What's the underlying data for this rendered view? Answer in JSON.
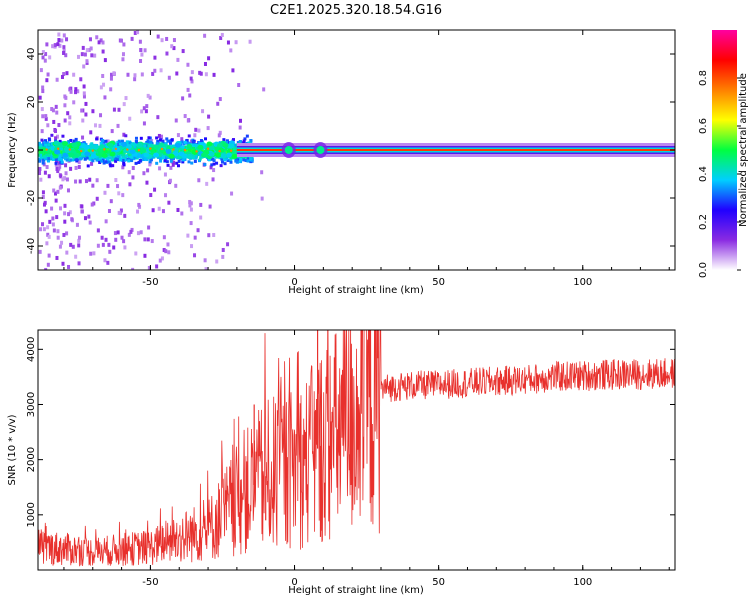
{
  "chart_data": [
    {
      "type": "heatmap",
      "title": "C2E1.2025.320.18.54.G16",
      "xlabel": "Height of straight line (km)",
      "ylabel": "Frequency (Hz)",
      "xlim": [
        -89,
        132
      ],
      "ylim": [
        -50,
        50
      ],
      "xticks": [
        -50,
        0,
        50,
        100
      ],
      "yticks": [
        -40,
        -20,
        0,
        20,
        40
      ],
      "grid": false,
      "colorbar": {
        "label": "Normalized spectral amplitude",
        "range": [
          0.0,
          1.0
        ],
        "ticks": [
          0.0,
          0.2,
          0.4,
          0.6,
          0.8
        ],
        "tick_labels": [
          "0.0",
          "0.2",
          "0.4",
          "0.6",
          "0.8"
        ],
        "colors": [
          "#ffffff",
          "#8a2be2",
          "#2000ff",
          "#00cfff",
          "#00ff40",
          "#ffff00",
          "#ff8000",
          "#ff0000",
          "#ff00a0"
        ]
      },
      "description_values": {
        "main_line_frequency_hz": 0,
        "noisy_region_end_km": -20,
        "noise_spread_hz": [
          -8,
          8
        ]
      }
    },
    {
      "type": "line",
      "xlabel": "Height of straight line (km)",
      "ylabel": "SNR (10 * v/v)",
      "xlim": [
        -89,
        132
      ],
      "ylim": [
        0,
        4350
      ],
      "xticks": [
        -50,
        0,
        50,
        100
      ],
      "yticks": [
        1000,
        2000,
        3000,
        4000
      ],
      "grid": false,
      "series": [
        {
          "name": "SNR",
          "color": "#e8302c",
          "trend_x": [
            -89,
            -70,
            -50,
            -40,
            -30,
            -22,
            -15,
            -10,
            -5,
            0,
            5,
            8,
            10,
            15,
            20,
            25,
            30,
            35,
            40,
            50,
            60,
            70,
            80,
            90,
            100,
            110,
            120,
            132
          ],
          "trend_y": [
            420,
            330,
            410,
            580,
            720,
            1150,
            1500,
            1700,
            1800,
            1850,
            2000,
            2200,
            2300,
            2450,
            2750,
            3050,
            3280,
            3320,
            3340,
            3360,
            3390,
            3420,
            3450,
            3500,
            3520,
            3540,
            3550,
            3560
          ],
          "spikes": [
            {
              "x": 8,
              "y": 4350
            },
            {
              "x": 9,
              "y": 600
            },
            {
              "x": -14,
              "y": 3000
            },
            {
              "x": -10,
              "y": 900
            }
          ]
        }
      ]
    }
  ]
}
